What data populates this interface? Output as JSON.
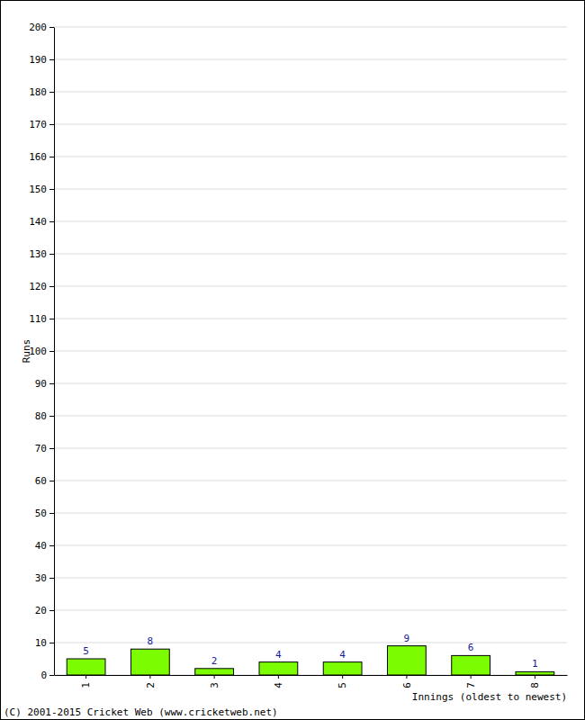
{
  "chart_data": {
    "type": "bar",
    "y_label": "Runs",
    "x_label": "Innings (oldest to newest)",
    "annotations": [
      "(C) 2001-2015 Cricket Web (www.cricketweb.net)"
    ],
    "categories": [
      "1",
      "2",
      "3",
      "4",
      "5",
      "6",
      "7",
      "8"
    ],
    "values": [
      5,
      8,
      2,
      4,
      4,
      9,
      6,
      1
    ],
    "color": "#7cfc00",
    "ylim": [
      0,
      200
    ],
    "yticks": [
      0,
      10,
      20,
      30,
      40,
      50,
      60,
      70,
      80,
      90,
      100,
      110,
      120,
      130,
      140,
      150,
      160,
      170,
      180,
      190,
      200
    ],
    "grid": true,
    "data_labels": true
  }
}
